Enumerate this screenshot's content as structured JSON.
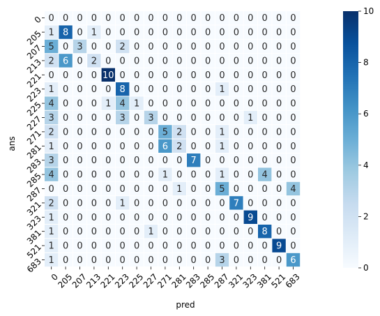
{
  "chart_data": {
    "type": "heatmap",
    "title": "",
    "xlabel": "pred",
    "ylabel": "ans",
    "x_categories": [
      "0",
      "205",
      "207",
      "213",
      "221",
      "223",
      "225",
      "227",
      "271",
      "281",
      "283",
      "285",
      "287",
      "321",
      "323",
      "381",
      "521",
      "683"
    ],
    "y_categories": [
      "0",
      "205",
      "207",
      "213",
      "221",
      "223",
      "225",
      "227",
      "271",
      "281",
      "283",
      "285",
      "287",
      "321",
      "323",
      "381",
      "521",
      "683"
    ],
    "values": [
      [
        0,
        0,
        0,
        0,
        0,
        0,
        0,
        0,
        0,
        0,
        0,
        0,
        0,
        0,
        0,
        0,
        0,
        0
      ],
      [
        1,
        8,
        0,
        1,
        0,
        0,
        0,
        0,
        0,
        0,
        0,
        0,
        0,
        0,
        0,
        0,
        0,
        0
      ],
      [
        5,
        0,
        3,
        0,
        0,
        2,
        0,
        0,
        0,
        0,
        0,
        0,
        0,
        0,
        0,
        0,
        0,
        0
      ],
      [
        2,
        6,
        0,
        2,
        0,
        0,
        0,
        0,
        0,
        0,
        0,
        0,
        0,
        0,
        0,
        0,
        0,
        0
      ],
      [
        0,
        0,
        0,
        0,
        10,
        0,
        0,
        0,
        0,
        0,
        0,
        0,
        0,
        0,
        0,
        0,
        0,
        0
      ],
      [
        1,
        0,
        0,
        0,
        0,
        8,
        0,
        0,
        0,
        0,
        0,
        0,
        1,
        0,
        0,
        0,
        0,
        0
      ],
      [
        4,
        0,
        0,
        0,
        1,
        4,
        1,
        0,
        0,
        0,
        0,
        0,
        0,
        0,
        0,
        0,
        0,
        0
      ],
      [
        3,
        0,
        0,
        0,
        0,
        3,
        0,
        3,
        0,
        0,
        0,
        0,
        0,
        0,
        1,
        0,
        0,
        0
      ],
      [
        2,
        0,
        0,
        0,
        0,
        0,
        0,
        0,
        5,
        2,
        0,
        0,
        1,
        0,
        0,
        0,
        0,
        0
      ],
      [
        1,
        0,
        0,
        0,
        0,
        0,
        0,
        0,
        6,
        2,
        0,
        0,
        1,
        0,
        0,
        0,
        0,
        0
      ],
      [
        3,
        0,
        0,
        0,
        0,
        0,
        0,
        0,
        0,
        0,
        7,
        0,
        0,
        0,
        0,
        0,
        0,
        0
      ],
      [
        4,
        0,
        0,
        0,
        0,
        0,
        0,
        0,
        1,
        0,
        0,
        0,
        1,
        0,
        0,
        4,
        0,
        0
      ],
      [
        0,
        0,
        0,
        0,
        0,
        0,
        0,
        0,
        0,
        1,
        0,
        0,
        5,
        0,
        0,
        0,
        0,
        4
      ],
      [
        2,
        0,
        0,
        0,
        0,
        1,
        0,
        0,
        0,
        0,
        0,
        0,
        0,
        7,
        0,
        0,
        0,
        0
      ],
      [
        1,
        0,
        0,
        0,
        0,
        0,
        0,
        0,
        0,
        0,
        0,
        0,
        0,
        0,
        9,
        0,
        0,
        0
      ],
      [
        1,
        0,
        0,
        0,
        0,
        0,
        0,
        1,
        0,
        0,
        0,
        0,
        0,
        0,
        0,
        8,
        0,
        0
      ],
      [
        1,
        0,
        0,
        0,
        0,
        0,
        0,
        0,
        0,
        0,
        0,
        0,
        0,
        0,
        0,
        0,
        9,
        0
      ],
      [
        1,
        0,
        0,
        0,
        0,
        0,
        0,
        0,
        0,
        0,
        0,
        0,
        3,
        0,
        0,
        0,
        0,
        6
      ]
    ],
    "colorscale": "Blues",
    "vmin": 0,
    "vmax": 10,
    "colorbar_ticks": [
      "0",
      "2",
      "4",
      "6",
      "8",
      "10"
    ],
    "annotations": "cell counts printed in each cell",
    "grid": false
  }
}
